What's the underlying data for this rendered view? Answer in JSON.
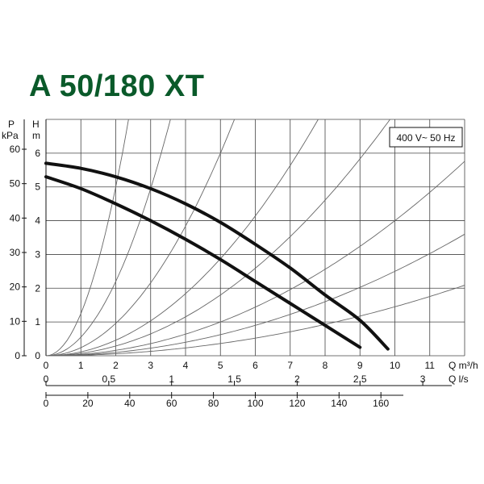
{
  "page": {
    "title": "A 50/180 XT",
    "title_color": "#0a5a2a"
  },
  "chart_data": {
    "type": "line",
    "title": "A 50/180 XT",
    "annotation": "400 V~ 50 Hz",
    "left_axes": [
      {
        "label_line1": "P",
        "label_line2": "kPa",
        "ticks": [
          0,
          10,
          20,
          30,
          40,
          50,
          60
        ]
      },
      {
        "label_line1": "H",
        "label_line2": "m",
        "ticks": [
          0,
          1,
          2,
          3,
          4,
          5,
          6
        ]
      }
    ],
    "bottom_axes": [
      {
        "label": "Q m³/h",
        "range": [
          0,
          12
        ],
        "ticks": [
          0,
          1,
          2,
          3,
          4,
          5,
          6,
          7,
          8,
          9,
          10,
          11
        ]
      },
      {
        "label": "Q l/s",
        "tick_values": [
          0,
          0.5,
          1,
          1.5,
          2,
          2.5,
          3
        ],
        "tick_labels": [
          "0",
          "0,5",
          "1",
          "1,5",
          "2",
          "2,5",
          "3"
        ]
      },
      {
        "label": "",
        "tick_values": [
          0,
          20,
          40,
          60,
          80,
          100,
          120,
          140,
          160
        ],
        "tick_labels": [
          "0",
          "20",
          "40",
          "60",
          "80",
          "100",
          "120",
          "140",
          "160"
        ]
      }
    ],
    "xlim": [
      0,
      12
    ],
    "ylim": [
      0,
      7
    ],
    "grid": true,
    "series": [
      {
        "style": "bold",
        "x": [
          0,
          1,
          2,
          3,
          4,
          5,
          6,
          7,
          8,
          9,
          9.8
        ],
        "y": [
          5.7,
          5.55,
          5.3,
          4.95,
          4.5,
          3.95,
          3.3,
          2.6,
          1.8,
          1.05,
          0.2
        ]
      },
      {
        "style": "bold",
        "x": [
          0,
          1,
          2,
          3,
          4,
          5,
          6,
          7,
          8,
          9
        ],
        "y": [
          5.3,
          4.95,
          4.5,
          4.0,
          3.45,
          2.85,
          2.2,
          1.55,
          0.9,
          0.25
        ]
      }
    ],
    "system_curve_coefficients": [
      1.25,
      0.55,
      0.24,
      0.115,
      0.072,
      0.04,
      0.025,
      0.0145
    ],
    "colors": {
      "curve": "#111111",
      "grid": "#444444",
      "system_curve": "#666666"
    }
  }
}
